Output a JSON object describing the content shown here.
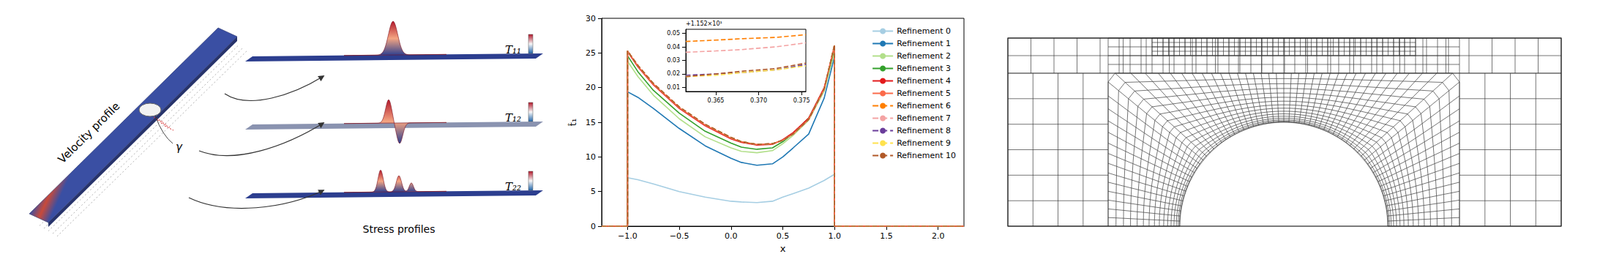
{
  "left_panel": {
    "velocity_label": "Velocity profile",
    "boundary_label": "γ",
    "stress_label": "Stress profiles",
    "components": [
      "T₁₁",
      "T₁₂",
      "T₂₂"
    ]
  },
  "chart_data": [
    {
      "type": "line",
      "x_label": "x",
      "y_label": "t̂₁",
      "xlim": [
        -1.25,
        2.25
      ],
      "xticks": [
        {
          "value": -1,
          "label": "−1.0"
        },
        {
          "value": -0.5,
          "label": "−0.5"
        },
        {
          "value": 0,
          "label": "0.0"
        },
        {
          "value": 0.5,
          "label": "0.5"
        },
        {
          "value": 1,
          "label": "1.0"
        },
        {
          "value": 1.5,
          "label": "1.5"
        },
        {
          "value": 2,
          "label": "2.0"
        }
      ],
      "ylim": [
        0,
        30
      ],
      "yticks": [
        0,
        5,
        10,
        15,
        20,
        25,
        30
      ],
      "grid": false,
      "legend": "upper right",
      "x": [
        -1.25,
        -1,
        -1,
        -0.9,
        -0.75,
        -0.5,
        -0.25,
        0,
        0.1,
        0.25,
        0.4,
        0.5,
        0.6,
        0.75,
        0.9,
        1,
        1,
        2.25
      ],
      "series": [
        {
          "name": "Refinement 0",
          "color": "#a6cee3",
          "line_style": "solid",
          "values": [
            0,
            0,
            7.0,
            6.7,
            6.1,
            5.0,
            4.2,
            3.6,
            3.5,
            3.4,
            3.6,
            4.2,
            4.7,
            5.5,
            6.6,
            7.5,
            0,
            0
          ]
        },
        {
          "name": "Refinement 1",
          "color": "#1f78b4",
          "line_style": "solid",
          "values": [
            0,
            0,
            19.4,
            18.6,
            17.0,
            14.1,
            11.6,
            9.8,
            9.2,
            8.8,
            9.0,
            10.0,
            11.3,
            13.3,
            18.5,
            24.5,
            0,
            0
          ]
        },
        {
          "name": "Refinement 2",
          "color": "#b2df8a",
          "line_style": "solid",
          "values": [
            0,
            0,
            23.8,
            21.6,
            18.9,
            15.5,
            12.9,
            11.3,
            10.8,
            10.6,
            10.9,
            11.9,
            13.1,
            15.3,
            19.5,
            25.2,
            0,
            0
          ]
        },
        {
          "name": "Refinement 3",
          "color": "#33a02c",
          "line_style": "solid",
          "values": [
            0,
            0,
            24.6,
            22.3,
            19.6,
            16.3,
            13.7,
            12.0,
            11.4,
            11.1,
            11.3,
            12.2,
            13.4,
            15.6,
            19.9,
            25.7,
            0,
            0
          ]
        },
        {
          "name": "Refinement 4",
          "color": "#e31a1c",
          "line_style": "solid",
          "values": [
            0,
            0,
            25.2,
            23.0,
            20.4,
            17.0,
            14.5,
            12.6,
            12.1,
            11.7,
            11.8,
            12.5,
            13.5,
            15.6,
            20.0,
            26.0,
            0,
            0
          ]
        },
        {
          "name": "Refinement 5",
          "color": "#fb6a4a",
          "line_style": "solid",
          "values": [
            0,
            0,
            25.3,
            23.1,
            20.5,
            17.1,
            14.6,
            12.7,
            12.2,
            11.8,
            11.9,
            12.4,
            13.3,
            15.4,
            19.8,
            26.1,
            0,
            0
          ]
        },
        {
          "name": "Refinement 6",
          "color": "#ff7f00",
          "line_style": "dashed",
          "values": [
            0,
            0,
            25.3,
            23.2,
            20.6,
            17.2,
            14.7,
            12.8,
            12.2,
            11.8,
            11.9,
            12.4,
            13.3,
            15.4,
            19.8,
            26.2,
            0,
            0
          ]
        },
        {
          "name": "Refinement 7",
          "color": "#f4a3a3",
          "line_style": "dashed",
          "values": [
            0,
            0,
            25.3,
            23.2,
            20.6,
            17.2,
            14.7,
            12.8,
            12.2,
            11.8,
            11.9,
            12.4,
            13.3,
            15.4,
            19.8,
            26.2,
            0,
            0
          ]
        },
        {
          "name": "Refinement 8",
          "color": "#6a3d9a",
          "line_style": "dashed",
          "values": [
            0,
            0,
            25.3,
            23.2,
            20.6,
            17.2,
            14.7,
            12.8,
            12.2,
            11.8,
            11.9,
            12.4,
            13.3,
            15.4,
            19.8,
            26.2,
            0,
            0
          ]
        },
        {
          "name": "Refinement 9",
          "color": "#ffe24d",
          "line_style": "dashed",
          "values": [
            0,
            0,
            25.3,
            23.2,
            20.6,
            17.2,
            14.7,
            12.8,
            12.2,
            11.8,
            11.9,
            12.4,
            13.3,
            15.4,
            19.8,
            26.2,
            0,
            0
          ]
        },
        {
          "name": "Refinement 10",
          "color": "#b15928",
          "line_style": "dashed",
          "values": [
            0,
            0,
            25.3,
            23.2,
            20.6,
            17.2,
            14.7,
            12.8,
            12.2,
            11.8,
            11.9,
            12.4,
            13.3,
            15.4,
            19.8,
            26.2,
            0,
            0
          ]
        }
      ]
    },
    {
      "type": "line",
      "y_offset_label": "+1.152×10¹",
      "xlim": [
        0.3615,
        0.3755
      ],
      "xticks": [
        0.365,
        {
          "value": 0.37,
          "label": "0.370"
        },
        0.375
      ],
      "ylim": [
        0.007,
        0.053
      ],
      "yticks": [
        0.01,
        0.02,
        0.03,
        0.04,
        0.05
      ],
      "grid": false,
      "x": [
        0.3615,
        0.365,
        0.368,
        0.372,
        0.3755
      ],
      "series": [
        {
          "name": "Refinement 6",
          "color": "#ff7f00",
          "line_style": "dashed",
          "values": [
            0.044,
            0.045,
            0.046,
            0.047,
            0.049
          ]
        },
        {
          "name": "Refinement 7",
          "color": "#f4a3a3",
          "line_style": "dashed",
          "values": [
            0.036,
            0.037,
            0.038,
            0.04,
            0.043
          ]
        },
        {
          "name": "Refinement 8",
          "color": "#6a3d9a",
          "line_style": "dashed",
          "values": [
            0.019,
            0.02,
            0.021,
            0.023,
            0.027
          ]
        },
        {
          "name": "Refinement 9",
          "color": "#ffe24d",
          "line_style": "dashed",
          "values": [
            0.018,
            0.019,
            0.021,
            0.023,
            0.026
          ]
        },
        {
          "name": "Refinement 10",
          "color": "#b15928",
          "line_style": "dashed",
          "values": [
            0.018,
            0.02,
            0.022,
            0.024,
            0.028
          ]
        }
      ]
    }
  ]
}
